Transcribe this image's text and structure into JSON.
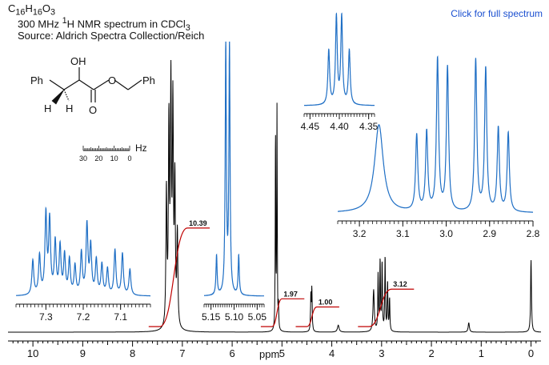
{
  "header": {
    "formula": {
      "c": "C",
      "c_n": "16",
      "h": "H",
      "h_n": "16",
      "o": "O",
      "o_n": "3"
    },
    "instrument_pre": "300 MHz ",
    "instrument_sup": "1",
    "instrument_post": "H NMR spectrum in CDCl",
    "instrument_sub": "3",
    "source": "Source: Aldrich Spectra Collection/Reich"
  },
  "link_label": "Click for full spectrum",
  "structure": {
    "oh": "OH",
    "ph_left": "Ph",
    "ph_right": "Ph",
    "h1": "H",
    "h2": "H",
    "o_carbonyl": "O",
    "o_ester": "O"
  },
  "colors": {
    "main_trace": "#000000",
    "inset_trace": "#1f6fc5",
    "integral": "#c00000",
    "axis": "#000000"
  },
  "chart_data": [
    {
      "type": "line",
      "id": "main",
      "xlabel": "ppm",
      "x_reversed": true,
      "xlim": [
        10.5,
        -0.2
      ],
      "x_ticks": [
        "10",
        "9",
        "8",
        "7",
        "6",
        "5",
        "4",
        "3",
        "2",
        "1",
        "0"
      ],
      "peaks": [
        {
          "ppm": 7.32,
          "height": 0.58,
          "width": 0.012
        },
        {
          "ppm": 7.27,
          "height": 0.85,
          "width": 0.012
        },
        {
          "ppm": 7.23,
          "height": 1.0,
          "width": 0.012
        },
        {
          "ppm": 7.19,
          "height": 0.92,
          "width": 0.012
        },
        {
          "ppm": 7.15,
          "height": 0.6,
          "width": 0.012
        },
        {
          "ppm": 7.1,
          "height": 0.4,
          "width": 0.012
        },
        {
          "ppm": 5.13,
          "height": 0.85,
          "width": 0.006
        },
        {
          "ppm": 5.1,
          "height": 0.95,
          "width": 0.006
        },
        {
          "ppm": 5.07,
          "height": 0.1,
          "width": 0.006
        },
        {
          "ppm": 4.42,
          "height": 0.15,
          "width": 0.008
        },
        {
          "ppm": 4.4,
          "height": 0.18,
          "width": 0.008
        },
        {
          "ppm": 3.87,
          "height": 0.03,
          "width": 0.02
        },
        {
          "ppm": 3.16,
          "height": 0.18,
          "width": 0.015
        },
        {
          "ppm": 3.07,
          "height": 0.24,
          "width": 0.008
        },
        {
          "ppm": 3.03,
          "height": 0.3,
          "width": 0.008
        },
        {
          "ppm": 2.99,
          "height": 0.29,
          "width": 0.008
        },
        {
          "ppm": 2.93,
          "height": 0.32,
          "width": 0.008
        },
        {
          "ppm": 2.88,
          "height": 0.21,
          "width": 0.008
        },
        {
          "ppm": 2.84,
          "height": 0.14,
          "width": 0.008
        },
        {
          "ppm": 1.25,
          "height": 0.04,
          "width": 0.015
        },
        {
          "ppm": 0.0,
          "height": 0.31,
          "width": 0.01
        }
      ],
      "integrals": [
        {
          "label": "10.39",
          "from": 7.45,
          "to": 6.9,
          "value": 10.39
        },
        {
          "label": "1.97",
          "from": 5.2,
          "to": 5.0,
          "value": 1.97
        },
        {
          "label": "1.00",
          "from": 4.5,
          "to": 4.3,
          "value": 1.0
        },
        {
          "label": "3.12",
          "from": 3.25,
          "to": 2.8,
          "value": 3.12
        }
      ]
    },
    {
      "type": "line",
      "id": "inset_aromatic",
      "xlim": [
        7.38,
        7.02
      ],
      "x_ticks": [
        "7.3",
        "7.2",
        "7.1"
      ],
      "x_tick_values": [
        7.3,
        7.2,
        7.1
      ],
      "peaks": [
        {
          "ppm": 7.335,
          "height": 0.4,
          "width": 0.003
        },
        {
          "ppm": 7.317,
          "height": 0.45,
          "width": 0.003
        },
        {
          "ppm": 7.3,
          "height": 0.92,
          "width": 0.003
        },
        {
          "ppm": 7.29,
          "height": 0.85,
          "width": 0.003
        },
        {
          "ppm": 7.275,
          "height": 0.6,
          "width": 0.003
        },
        {
          "ppm": 7.262,
          "height": 0.55,
          "width": 0.003
        },
        {
          "ppm": 7.25,
          "height": 0.45,
          "width": 0.003
        },
        {
          "ppm": 7.237,
          "height": 0.4,
          "width": 0.003
        },
        {
          "ppm": 7.222,
          "height": 0.33,
          "width": 0.003
        },
        {
          "ppm": 7.205,
          "height": 0.48,
          "width": 0.003
        },
        {
          "ppm": 7.19,
          "height": 0.8,
          "width": 0.003
        },
        {
          "ppm": 7.18,
          "height": 0.55,
          "width": 0.003
        },
        {
          "ppm": 7.165,
          "height": 0.4,
          "width": 0.003
        },
        {
          "ppm": 7.15,
          "height": 0.35,
          "width": 0.003
        },
        {
          "ppm": 7.135,
          "height": 0.3,
          "width": 0.003
        },
        {
          "ppm": 7.115,
          "height": 0.52,
          "width": 0.003
        },
        {
          "ppm": 7.095,
          "height": 0.48,
          "width": 0.003
        },
        {
          "ppm": 7.075,
          "height": 0.3,
          "width": 0.003
        }
      ]
    },
    {
      "type": "line",
      "id": "inset_ch2o",
      "xlim": [
        5.165,
        5.035
      ],
      "x_ticks": [
        "5.15",
        "5.10",
        "5.05"
      ],
      "x_tick_values": [
        5.15,
        5.1,
        5.05
      ],
      "peaks": [
        {
          "ppm": 5.138,
          "height": 0.16,
          "width": 0.0015
        },
        {
          "ppm": 5.118,
          "height": 1.0,
          "width": 0.0015
        },
        {
          "ppm": 5.11,
          "height": 1.0,
          "width": 0.0015
        },
        {
          "ppm": 5.09,
          "height": 0.16,
          "width": 0.0015
        }
      ]
    },
    {
      "type": "line",
      "id": "inset_ch",
      "xlim": [
        4.46,
        4.34
      ],
      "x_ticks": [
        "4.45",
        "4.40",
        "4.35"
      ],
      "x_tick_values": [
        4.45,
        4.4,
        4.35
      ],
      "peaks": [
        {
          "ppm": 4.418,
          "height": 0.62,
          "width": 0.0018
        },
        {
          "ppm": 4.405,
          "height": 1.0,
          "width": 0.0018
        },
        {
          "ppm": 4.396,
          "height": 1.0,
          "width": 0.0018
        },
        {
          "ppm": 4.383,
          "height": 0.62,
          "width": 0.0018
        }
      ]
    },
    {
      "type": "line",
      "id": "inset_aliphatic",
      "xlim": [
        3.25,
        2.8
      ],
      "x_ticks": [
        "3.2",
        "3.1",
        "3.0",
        "2.9",
        "2.8"
      ],
      "x_tick_values": [
        3.2,
        3.1,
        3.0,
        2.9,
        2.8
      ],
      "peaks": [
        {
          "ppm": 3.155,
          "height": 0.58,
          "width": 0.012
        },
        {
          "ppm": 3.068,
          "height": 0.5,
          "width": 0.003
        },
        {
          "ppm": 3.045,
          "height": 0.52,
          "width": 0.003
        },
        {
          "ppm": 3.02,
          "height": 1.0,
          "width": 0.003
        },
        {
          "ppm": 2.997,
          "height": 0.95,
          "width": 0.003
        },
        {
          "ppm": 2.932,
          "height": 1.0,
          "width": 0.003
        },
        {
          "ppm": 2.909,
          "height": 0.94,
          "width": 0.003
        },
        {
          "ppm": 2.88,
          "height": 0.55,
          "width": 0.003
        },
        {
          "ppm": 2.857,
          "height": 0.52,
          "width": 0.003
        }
      ]
    },
    {
      "type": "scale_bar",
      "id": "hz_scale",
      "unit": "Hz",
      "ticks": [
        "30",
        "20",
        "10",
        "0"
      ]
    }
  ]
}
